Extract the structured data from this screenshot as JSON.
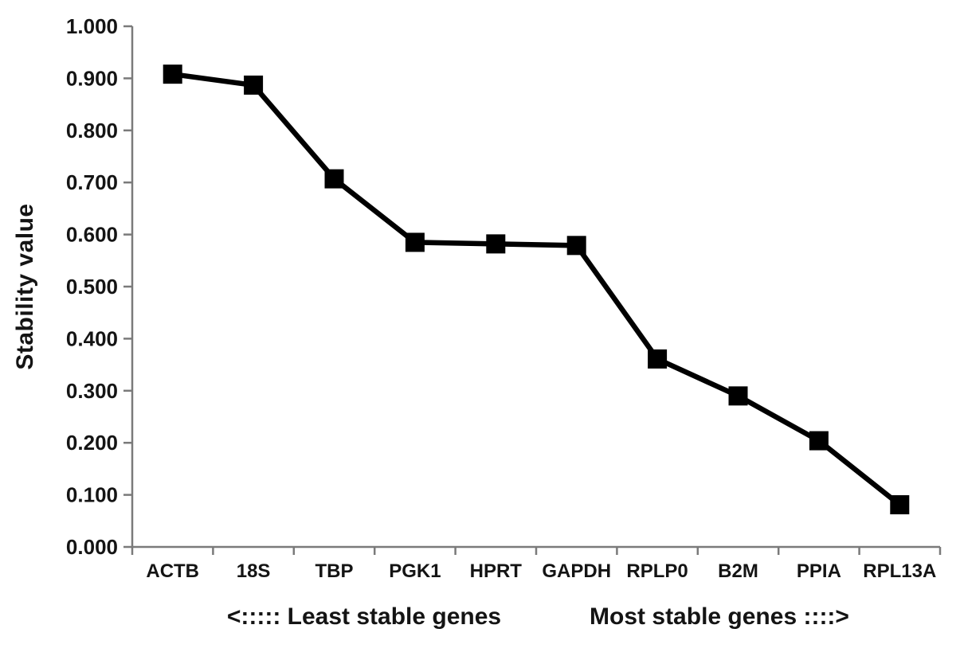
{
  "chart_data": {
    "type": "line",
    "title": "",
    "ylabel": "Stability value",
    "xlabel_left": "<:::::  Least stable genes",
    "xlabel_right": "Most stable genes ::::>",
    "categories": [
      "ACTB",
      "18S",
      "TBP",
      "PGK1",
      "HPRT",
      "GAPDH",
      "RPLP0",
      "B2M",
      "PPIA",
      "RPL13A"
    ],
    "values": [
      0.908,
      0.887,
      0.707,
      0.585,
      0.582,
      0.579,
      0.361,
      0.29,
      0.204,
      0.081
    ],
    "ylim": [
      0.0,
      1.0
    ],
    "ytick_step": 0.1,
    "ytick_labels": [
      "1.000",
      "0.900",
      "0.800",
      "0.700",
      "0.600",
      "0.500",
      "0.400",
      "0.300",
      "0.200",
      "0.100",
      "0.000"
    ],
    "grid": false,
    "legend_position": "none",
    "marker": "square",
    "line_color": "#000000",
    "marker_color": "#000000",
    "axis_color": "#7a7a7a",
    "text_color": "#141414"
  }
}
